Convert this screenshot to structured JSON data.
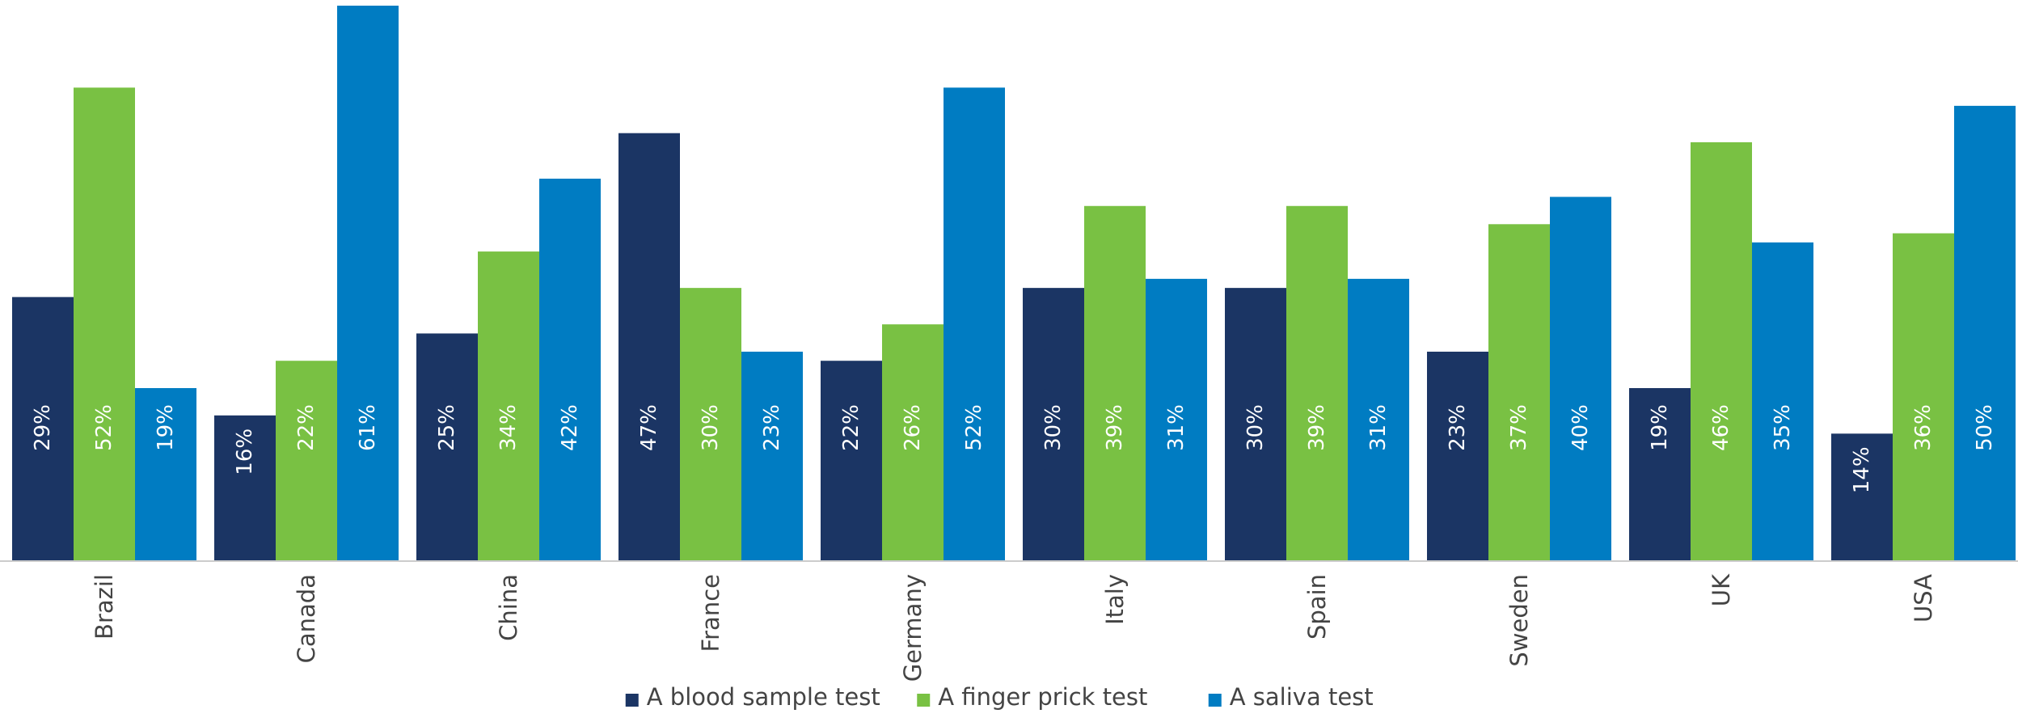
{
  "chart_data": {
    "type": "bar",
    "title": "",
    "xlabel": "",
    "ylabel": "",
    "ylim": [
      0,
      61
    ],
    "grid": false,
    "legend_position": "bottom-center",
    "value_suffix": "%",
    "categories": [
      "Brazil",
      "Canada",
      "China",
      "France",
      "Germany",
      "Italy",
      "Spain",
      "Sweden",
      "UK",
      "USA"
    ],
    "series": [
      {
        "name": "A blood sample test",
        "color": "#1b3564",
        "values": [
          29,
          16,
          25,
          47,
          22,
          30,
          30,
          23,
          19,
          14
        ]
      },
      {
        "name": "A finger prick test",
        "color": "#79c143",
        "values": [
          52,
          22,
          34,
          30,
          26,
          39,
          39,
          37,
          46,
          36
        ]
      },
      {
        "name": "A saliva test",
        "color": "#007cc2",
        "values": [
          19,
          61,
          42,
          23,
          52,
          31,
          31,
          40,
          35,
          50
        ]
      }
    ]
  }
}
